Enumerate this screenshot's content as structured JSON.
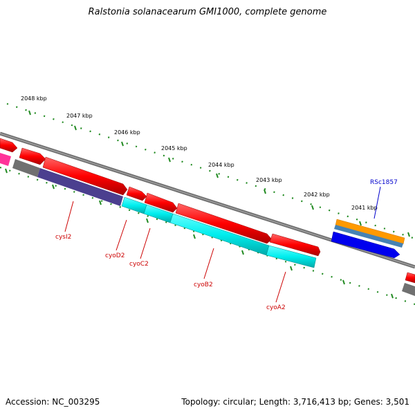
{
  "title": "Ralstonia solanacearum GMI1000, complete genome",
  "accession": "Accession: NC_003295",
  "summary": "Topology: circular; Length: 3,716,413 bp; Genes: 3,501",
  "ruler_labels": [
    "2048 kbp",
    "2047 kbp",
    "2046 kbp",
    "2045 kbp",
    "2044 kbp",
    "2043 kbp",
    "2042 kbp",
    "2041 kbp"
  ],
  "gene_labels": [
    {
      "name": "cysI2",
      "color": "#cc0000"
    },
    {
      "name": "cyoD2",
      "color": "#cc0000"
    },
    {
      "name": "cyoC2",
      "color": "#cc0000"
    },
    {
      "name": "cyoB2",
      "color": "#cc0000"
    },
    {
      "name": "cyoA2",
      "color": "#cc0000"
    },
    {
      "name": "RSc1857",
      "color": "#0000cc"
    }
  ],
  "colors": {
    "cds": "#ff0000",
    "gene": "#00ffff",
    "gene_alt": "#4b3f8f",
    "backbone": "#808080",
    "ticks": "#228b22",
    "misc_orange": "#ff9900",
    "misc_blue": "#4682b4",
    "cds_blue": "#0000ff",
    "pink": "#ff3399"
  }
}
